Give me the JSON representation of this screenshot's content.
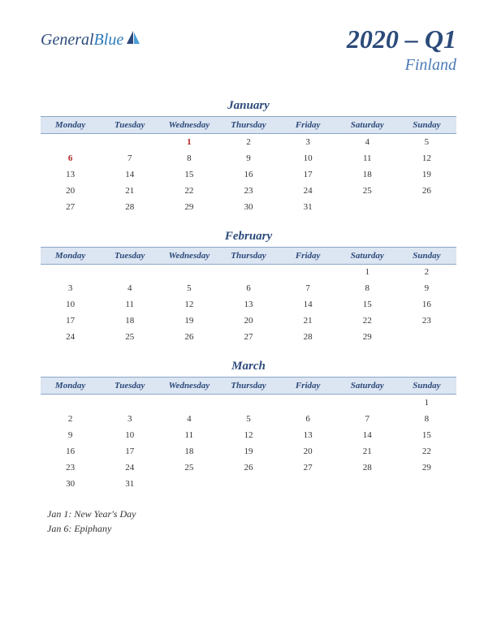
{
  "logo": {
    "text1": "General",
    "text2": "Blue"
  },
  "title": "2020 – Q1",
  "country": "Finland",
  "day_headers": [
    "Monday",
    "Tuesday",
    "Wednesday",
    "Thursday",
    "Friday",
    "Saturday",
    "Sunday"
  ],
  "months": [
    {
      "name": "January",
      "weeks": [
        [
          "",
          "",
          "1",
          "2",
          "3",
          "4",
          "5"
        ],
        [
          "6",
          "7",
          "8",
          "9",
          "10",
          "11",
          "12"
        ],
        [
          "13",
          "14",
          "15",
          "16",
          "17",
          "18",
          "19"
        ],
        [
          "20",
          "21",
          "22",
          "23",
          "24",
          "25",
          "26"
        ],
        [
          "27",
          "28",
          "29",
          "30",
          "31",
          "",
          ""
        ]
      ],
      "holidays": [
        [
          0,
          2
        ],
        [
          1,
          0
        ]
      ]
    },
    {
      "name": "February",
      "weeks": [
        [
          "",
          "",
          "",
          "",
          "",
          "1",
          "2"
        ],
        [
          "3",
          "4",
          "5",
          "6",
          "7",
          "8",
          "9"
        ],
        [
          "10",
          "11",
          "12",
          "13",
          "14",
          "15",
          "16"
        ],
        [
          "17",
          "18",
          "19",
          "20",
          "21",
          "22",
          "23"
        ],
        [
          "24",
          "25",
          "26",
          "27",
          "28",
          "29",
          ""
        ]
      ],
      "holidays": []
    },
    {
      "name": "March",
      "weeks": [
        [
          "",
          "",
          "",
          "",
          "",
          "",
          "1"
        ],
        [
          "2",
          "3",
          "4",
          "5",
          "6",
          "7",
          "8"
        ],
        [
          "9",
          "10",
          "11",
          "12",
          "13",
          "14",
          "15"
        ],
        [
          "16",
          "17",
          "18",
          "19",
          "20",
          "21",
          "22"
        ],
        [
          "23",
          "24",
          "25",
          "26",
          "27",
          "28",
          "29"
        ],
        [
          "30",
          "31",
          "",
          "",
          "",
          "",
          ""
        ]
      ],
      "holidays": []
    }
  ],
  "holiday_list": [
    "Jan 1: New Year's Day",
    "Jan 6: Epiphany"
  ],
  "colors": {
    "header_bg": "#dce5f2",
    "header_border": "#8aa5c8",
    "title_color": "#2c4a7a",
    "subtitle_color": "#4a7ab8",
    "holiday_color": "#b22222",
    "text_color": "#333333",
    "background": "#ffffff"
  },
  "typography": {
    "title_fontsize": 32,
    "subtitle_fontsize": 20,
    "month_fontsize": 15,
    "header_fontsize": 11,
    "cell_fontsize": 11,
    "holiday_fontsize": 12,
    "font_family": "Georgia, serif",
    "font_style": "italic"
  }
}
